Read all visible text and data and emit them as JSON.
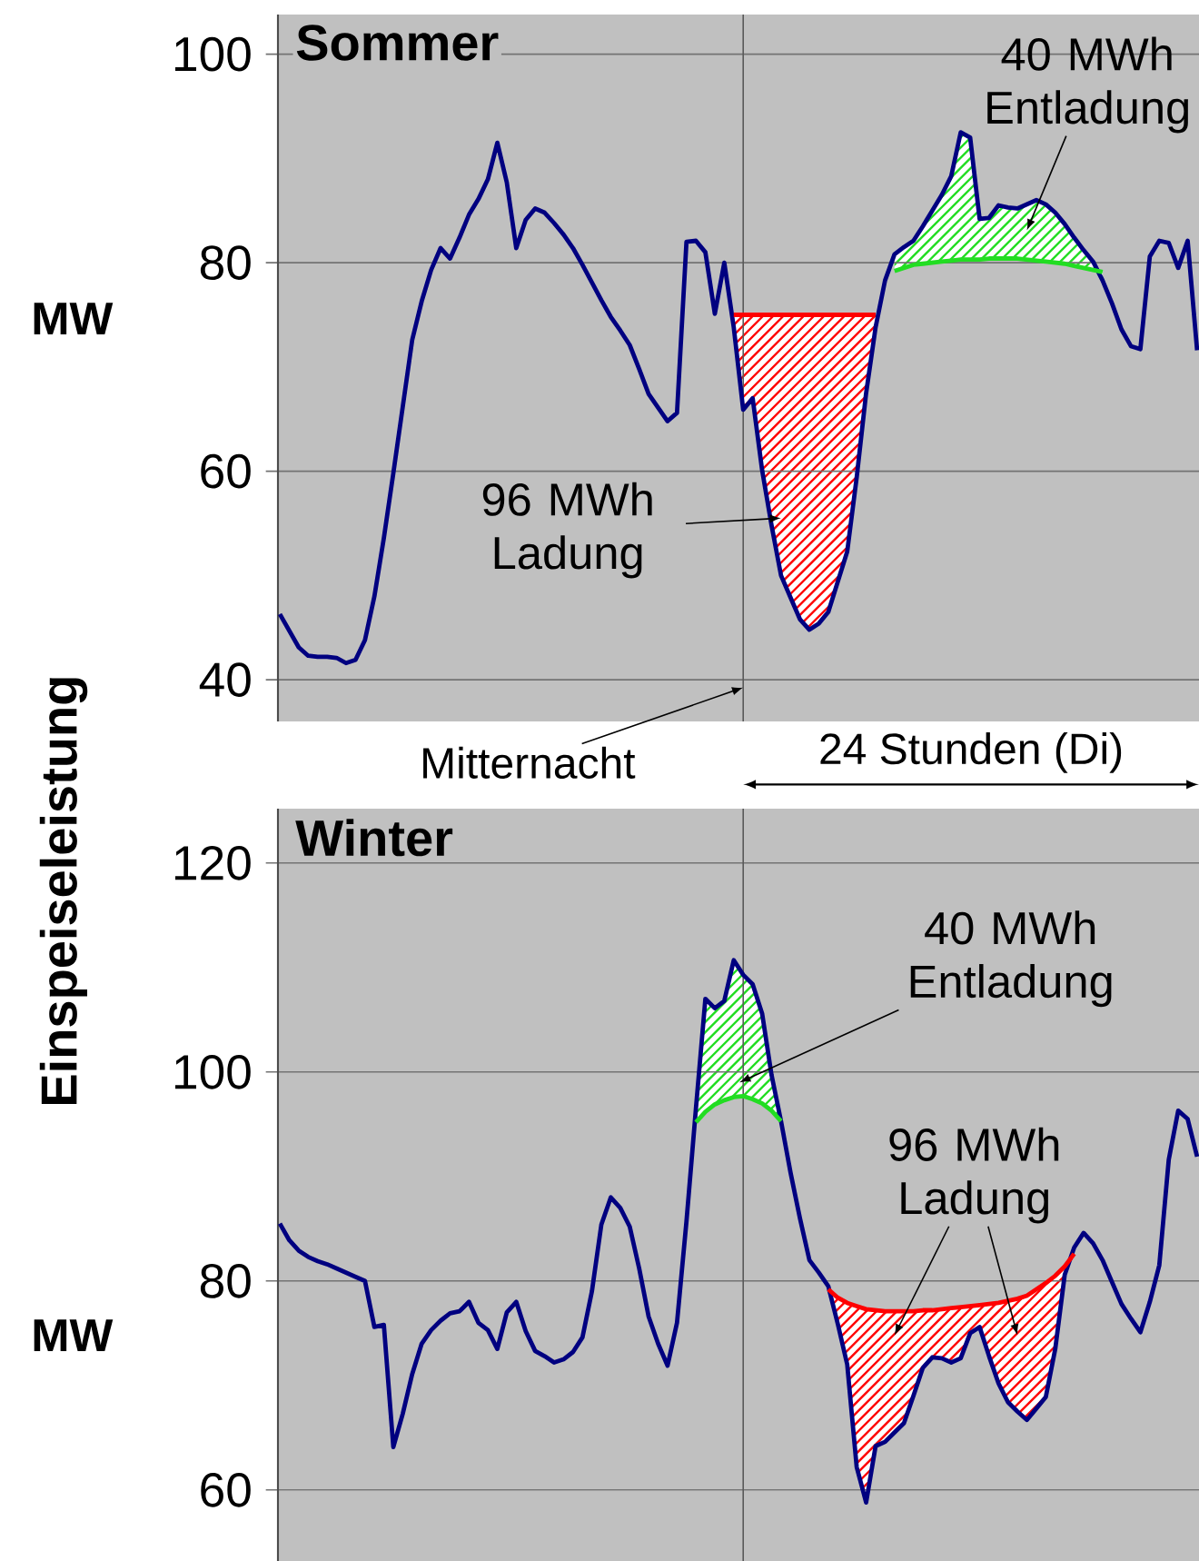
{
  "chart_data": [
    {
      "type": "line",
      "title": "Sommer",
      "ylabel": "MW",
      "ylim": [
        36,
        103.8
      ],
      "yticks": [
        40,
        60,
        80,
        100
      ],
      "grid": "y",
      "tick_labels": "y",
      "categories": [
        null,
        null,
        null,
        null,
        null,
        null,
        null,
        null,
        null,
        null,
        null,
        null,
        null,
        null,
        null,
        null,
        null,
        null,
        null,
        null,
        null,
        null,
        null,
        null,
        null,
        null,
        null,
        null,
        null,
        null,
        null,
        null,
        null,
        null,
        null,
        null,
        null,
        null,
        null,
        null,
        null,
        null,
        null,
        null,
        null,
        null,
        null,
        null,
        null,
        null,
        null,
        null,
        null,
        null,
        null,
        null,
        null,
        null,
        null,
        null,
        null,
        null,
        null,
        null,
        null,
        null,
        null,
        null,
        null,
        null,
        null,
        null,
        null,
        null,
        null,
        null,
        null,
        null,
        null,
        null,
        null,
        null,
        null,
        null,
        null,
        null,
        null,
        null,
        null,
        null,
        null,
        null,
        null,
        null,
        null,
        null,
        null,
        null
      ],
      "series": [
        {
          "color": "#000080",
          "values": [
            46.3,
            44.7,
            43.1,
            42.3,
            42.2,
            42.2,
            42.1,
            41.6,
            41.9,
            43.8,
            48.0,
            53.6,
            59.8,
            66.2,
            72.6,
            76.3,
            79.3,
            81.4,
            80.4,
            82.4,
            84.6,
            86.1,
            88.0,
            91.5,
            87.7,
            81.4,
            84.1,
            85.2,
            84.8,
            83.8,
            82.7,
            81.4,
            79.8,
            78.1,
            76.4,
            74.8,
            73.5,
            72.1,
            69.8,
            67.4,
            66.1,
            64.8,
            65.6,
            82.0,
            82.1,
            81.0,
            75.1,
            80.0,
            73.8,
            65.9,
            67.0,
            60.1,
            54.8,
            50.0,
            47.9,
            45.8,
            44.8,
            45.4,
            46.5,
            49.4,
            52.3,
            59.4,
            67.5,
            73.8,
            78.3,
            80.8,
            81.5,
            82.1,
            83.5,
            85.0,
            86.5,
            88.3,
            92.5,
            92.0,
            84.2,
            84.3,
            85.5,
            85.3,
            85.2,
            85.6,
            86.0,
            85.6,
            84.8,
            83.7,
            82.4,
            81.2,
            80.1,
            78.3,
            76.1,
            73.6,
            72.0,
            71.7,
            80.6,
            82.1,
            81.9,
            79.5,
            82.1,
            71.6
          ]
        },
        {
          "color": "#ff0000",
          "values": [
            null,
            null,
            null,
            null,
            null,
            null,
            null,
            null,
            null,
            null,
            null,
            null,
            null,
            null,
            null,
            null,
            null,
            null,
            null,
            null,
            null,
            null,
            null,
            null,
            null,
            null,
            null,
            null,
            null,
            null,
            null,
            null,
            null,
            null,
            null,
            null,
            null,
            null,
            null,
            null,
            null,
            null,
            null,
            null,
            null,
            null,
            null,
            null,
            75,
            75,
            75,
            75,
            75,
            75,
            75,
            75,
            75,
            75,
            75,
            75,
            75,
            75,
            75,
            75,
            null,
            null,
            null,
            null,
            null,
            null,
            null,
            null,
            null,
            null,
            null,
            null,
            null,
            null,
            null,
            null,
            null,
            null,
            null,
            null,
            null,
            null,
            null,
            null,
            null,
            null,
            null,
            null,
            null,
            null,
            null,
            null,
            null,
            null
          ]
        },
        {
          "color": "#22dd22",
          "values": [
            null,
            null,
            null,
            null,
            null,
            null,
            null,
            null,
            null,
            null,
            null,
            null,
            null,
            null,
            null,
            null,
            null,
            null,
            null,
            null,
            null,
            null,
            null,
            null,
            null,
            null,
            null,
            null,
            null,
            null,
            null,
            null,
            null,
            null,
            null,
            null,
            null,
            null,
            null,
            null,
            null,
            null,
            null,
            null,
            null,
            null,
            null,
            null,
            null,
            null,
            null,
            null,
            null,
            null,
            null,
            null,
            null,
            null,
            null,
            null,
            null,
            null,
            null,
            null,
            null,
            79.2,
            79.5,
            79.8,
            79.9,
            80.0,
            80.1,
            80.2,
            80.3,
            80.3,
            80.3,
            80.4,
            80.4,
            80.4,
            80.4,
            80.3,
            80.2,
            80.1,
            80.0,
            79.9,
            79.7,
            79.5,
            79.3,
            79.1,
            null,
            null,
            null,
            null,
            null,
            null,
            null,
            null,
            null,
            null
          ]
        }
      ],
      "annotations": [
        "96 MWh Ladung",
        "40 MWh Entladung",
        "Einspeiseleistung",
        "24 Stunden (Di)",
        "Mitternacht"
      ]
    },
    {
      "type": "line",
      "title": "Winter",
      "ylabel": "MW",
      "ylim": [
        53.2,
        125.2
      ],
      "yticks": [
        60,
        80,
        100,
        120
      ],
      "grid": "y",
      "tick_labels": "y",
      "categories": [
        null,
        null,
        null,
        null,
        null,
        null,
        null,
        null,
        null,
        null,
        null,
        null,
        null,
        null,
        null,
        null,
        null,
        null,
        null,
        null,
        null,
        null,
        null,
        null,
        null,
        null,
        null,
        null,
        null,
        null,
        null,
        null,
        null,
        null,
        null,
        null,
        null,
        null,
        null,
        null,
        null,
        null,
        null,
        null,
        null,
        null,
        null,
        null,
        null,
        null,
        null,
        null,
        null,
        null,
        null,
        null,
        null,
        null,
        null,
        null,
        null,
        null,
        null,
        null,
        null,
        null,
        null,
        null,
        null,
        null,
        null,
        null,
        null,
        null,
        null,
        null,
        null,
        null,
        null,
        null,
        null,
        null,
        null,
        null,
        null,
        null,
        null,
        null,
        null,
        null,
        null,
        null,
        null,
        null,
        null,
        null,
        null,
        null
      ],
      "series": [
        {
          "color": "#000080",
          "values": [
            85.5,
            83.9,
            82.9,
            82.3,
            81.9,
            81.6,
            81.2,
            80.8,
            80.4,
            80.0,
            75.6,
            75.8,
            64.1,
            67.3,
            71.1,
            74.0,
            75.3,
            76.2,
            76.9,
            77.1,
            78.0,
            76.0,
            75.3,
            73.5,
            77.0,
            78.0,
            75.2,
            73.3,
            72.8,
            72.2,
            72.5,
            73.2,
            74.6,
            79.0,
            85.4,
            88.0,
            87.0,
            85.2,
            81.2,
            76.6,
            74.0,
            71.9,
            76.0,
            85.7,
            96.5,
            107.0,
            106.1,
            106.8,
            110.7,
            109.3,
            108.4,
            105.6,
            99.7,
            95.3,
            90.4,
            86.0,
            82.0,
            80.8,
            79.5,
            75.9,
            72.0,
            62.2,
            58.8,
            64.2,
            64.6,
            65.5,
            66.4,
            69.0,
            71.7,
            72.7,
            72.6,
            72.2,
            72.6,
            75.0,
            75.6,
            72.8,
            70.2,
            68.4,
            67.5,
            66.7,
            67.8,
            68.9,
            73.5,
            80.6,
            83.2,
            84.6,
            83.6,
            82.0,
            79.9,
            77.8,
            76.4,
            75.1,
            78.0,
            81.5,
            91.6,
            96.3,
            95.5,
            91.9
          ]
        },
        {
          "color": "#22dd22",
          "values": [
            null,
            null,
            null,
            null,
            null,
            null,
            null,
            null,
            null,
            null,
            null,
            null,
            null,
            null,
            null,
            null,
            null,
            null,
            null,
            null,
            null,
            null,
            null,
            null,
            null,
            null,
            null,
            null,
            null,
            null,
            null,
            null,
            null,
            null,
            null,
            null,
            null,
            null,
            null,
            null,
            null,
            null,
            null,
            null,
            95.2,
            96.2,
            96.9,
            97.3,
            97.6,
            97.7,
            97.4,
            97.0,
            96.3,
            95.3,
            null,
            null,
            null,
            null,
            null,
            null,
            null,
            null,
            null,
            null,
            null,
            null,
            null,
            null,
            null,
            null,
            null,
            null,
            null,
            null,
            null,
            null,
            null,
            null,
            null,
            null,
            null,
            null,
            null,
            null,
            null,
            null,
            null,
            null,
            null,
            null,
            null,
            null,
            null,
            null,
            null,
            null,
            null,
            null
          ]
        },
        {
          "color": "#ff0000",
          "values": [
            null,
            null,
            null,
            null,
            null,
            null,
            null,
            null,
            null,
            null,
            null,
            null,
            null,
            null,
            null,
            null,
            null,
            null,
            null,
            null,
            null,
            null,
            null,
            null,
            null,
            null,
            null,
            null,
            null,
            null,
            null,
            null,
            null,
            null,
            null,
            null,
            null,
            null,
            null,
            null,
            null,
            null,
            null,
            null,
            null,
            null,
            null,
            null,
            null,
            null,
            null,
            null,
            null,
            null,
            null,
            null,
            null,
            null,
            79.2,
            78.4,
            77.9,
            77.6,
            77.3,
            77.2,
            77.1,
            77.1,
            77.1,
            77.1,
            77.2,
            77.2,
            77.3,
            77.4,
            77.5,
            77.6,
            77.7,
            77.8,
            77.9,
            78.1,
            78.3,
            78.6,
            79.2,
            79.8,
            80.5,
            81.4,
            82.6,
            null,
            null,
            null,
            null,
            null,
            null,
            null,
            null,
            null,
            null,
            null,
            null,
            null
          ]
        }
      ],
      "annotations": [
        "40 MWh Entladung",
        "96 MWh Ladung"
      ]
    }
  ]
}
